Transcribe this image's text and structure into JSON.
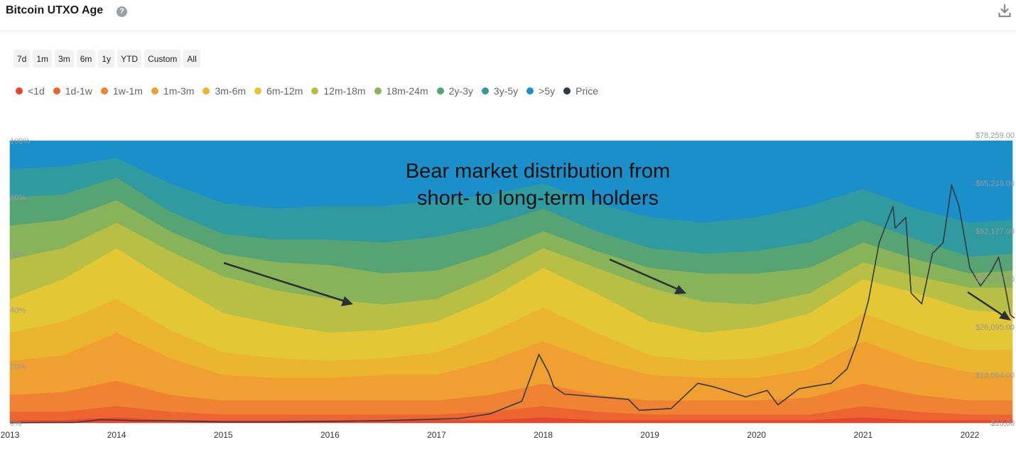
{
  "header": {
    "title": "Bitcoin UTXO Age",
    "help_icon": "question-circle-icon",
    "help_glyph": "?",
    "download_icon": "download-icon"
  },
  "ranges": [
    "7d",
    "1m",
    "3m",
    "6m",
    "1y",
    "YTD",
    "Custom",
    "All"
  ],
  "chart_data": {
    "type": "area",
    "stacked": "percent",
    "title": "",
    "x_ticks": [
      "2013",
      "2014",
      "2015",
      "2016",
      "2017",
      "2018",
      "2019",
      "2020",
      "2021",
      "2022"
    ],
    "y_ticks": [
      "0%",
      "20%",
      "40%",
      "60%",
      "80%",
      "100%"
    ],
    "ylim": [
      0,
      100
    ],
    "price_axis_ticks": [
      "$13,00",
      "$13,054.00",
      "$26,095.00",
      "$39,136.00",
      "$52,177.00",
      "$65,218.00",
      "$78,259.00"
    ],
    "price_ylim": [
      13,
      78259
    ],
    "legend_position": "top-left",
    "grid": false,
    "x": [
      2013.0,
      2013.5,
      2014.0,
      2014.5,
      2015.0,
      2015.5,
      2016.0,
      2016.5,
      2017.0,
      2017.5,
      2018.0,
      2018.5,
      2019.0,
      2019.5,
      2020.0,
      2020.5,
      2021.0,
      2021.5,
      2022.0,
      2022.4
    ],
    "series": [
      {
        "name": "<1d",
        "color": "#e8452c",
        "values": [
          1,
          1,
          2,
          1,
          1,
          1,
          1,
          1,
          1,
          1,
          2,
          1,
          1,
          1,
          1,
          1,
          2,
          1,
          1,
          1
        ]
      },
      {
        "name": "1d-1w",
        "color": "#ec6530",
        "values": [
          3,
          3,
          4,
          3,
          2,
          2,
          2,
          2,
          2,
          3,
          4,
          3,
          2,
          2,
          2,
          2,
          4,
          3,
          2,
          2
        ]
      },
      {
        "name": "1w-1m",
        "color": "#ef8233",
        "values": [
          6,
          7,
          9,
          6,
          5,
          5,
          5,
          5,
          5,
          6,
          8,
          6,
          5,
          5,
          5,
          6,
          8,
          6,
          5,
          5
        ]
      },
      {
        "name": "1m-3m",
        "color": "#f0a030",
        "values": [
          12,
          13,
          17,
          13,
          9,
          8,
          8,
          9,
          9,
          12,
          15,
          12,
          9,
          8,
          8,
          10,
          15,
          12,
          10,
          9
        ]
      },
      {
        "name": "3m-6m",
        "color": "#ebb52f",
        "values": [
          10,
          12,
          12,
          10,
          8,
          7,
          6,
          6,
          8,
          10,
          12,
          10,
          7,
          6,
          7,
          8,
          10,
          10,
          8,
          9
        ]
      },
      {
        "name": "6m-12m",
        "color": "#e3c734",
        "values": [
          12,
          15,
          18,
          17,
          14,
          12,
          10,
          10,
          11,
          12,
          14,
          14,
          12,
          10,
          11,
          12,
          12,
          14,
          14,
          13
        ]
      },
      {
        "name": "12m-18m",
        "color": "#b7bf45",
        "values": [
          14,
          11,
          9,
          11,
          13,
          12,
          12,
          9,
          8,
          8,
          7,
          9,
          12,
          11,
          8,
          7,
          6,
          6,
          8,
          9
        ]
      },
      {
        "name": "18m-24m",
        "color": "#88b358",
        "values": [
          12,
          10,
          8,
          7,
          8,
          10,
          12,
          11,
          10,
          8,
          6,
          6,
          7,
          10,
          11,
          9,
          7,
          6,
          5,
          6
        ]
      },
      {
        "name": "2y-3y",
        "color": "#56a474",
        "values": [
          10,
          9,
          8,
          7,
          7,
          8,
          9,
          11,
          12,
          10,
          8,
          7,
          7,
          7,
          8,
          9,
          8,
          7,
          6,
          6
        ]
      },
      {
        "name": "3y-5y",
        "color": "#2f9aa0",
        "values": [
          10,
          10,
          7,
          10,
          11,
          11,
          12,
          13,
          13,
          11,
          9,
          10,
          11,
          11,
          12,
          13,
          11,
          11,
          12,
          12
        ]
      },
      {
        "name": ">5y",
        "color": "#1a8fc9",
        "values": [
          10,
          9,
          6,
          15,
          22,
          24,
          23,
          23,
          21,
          19,
          15,
          22,
          27,
          29,
          27,
          23,
          17,
          24,
          29,
          28
        ]
      }
    ],
    "price": {
      "name": "Price",
      "color": "#333a40",
      "points": [
        [
          2013.0,
          13
        ],
        [
          2013.3,
          100
        ],
        [
          2013.6,
          120
        ],
        [
          2013.85,
          900
        ],
        [
          2014.0,
          800
        ],
        [
          2014.2,
          600
        ],
        [
          2014.5,
          600
        ],
        [
          2015.0,
          250
        ],
        [
          2015.5,
          250
        ],
        [
          2016.0,
          430
        ],
        [
          2016.5,
          650
        ],
        [
          2016.9,
          960
        ],
        [
          2017.2,
          1200
        ],
        [
          2017.5,
          2500
        ],
        [
          2017.8,
          6000
        ],
        [
          2017.96,
          19000
        ],
        [
          2018.05,
          14000
        ],
        [
          2018.1,
          10000
        ],
        [
          2018.2,
          8000
        ],
        [
          2018.4,
          7500
        ],
        [
          2018.6,
          7000
        ],
        [
          2018.8,
          6500
        ],
        [
          2018.9,
          3500
        ],
        [
          2019.2,
          4000
        ],
        [
          2019.45,
          11000
        ],
        [
          2019.6,
          10000
        ],
        [
          2019.9,
          7200
        ],
        [
          2020.1,
          9000
        ],
        [
          2020.2,
          5000
        ],
        [
          2020.4,
          9500
        ],
        [
          2020.7,
          11000
        ],
        [
          2020.85,
          15000
        ],
        [
          2020.95,
          23000
        ],
        [
          2021.05,
          34000
        ],
        [
          2021.15,
          50000
        ],
        [
          2021.28,
          60000
        ],
        [
          2021.3,
          54000
        ],
        [
          2021.4,
          57000
        ],
        [
          2021.45,
          36000
        ],
        [
          2021.55,
          33000
        ],
        [
          2021.6,
          40000
        ],
        [
          2021.65,
          47000
        ],
        [
          2021.75,
          50000
        ],
        [
          2021.83,
          66000
        ],
        [
          2021.9,
          60000
        ],
        [
          2022.0,
          43000
        ],
        [
          2022.1,
          38000
        ],
        [
          2022.2,
          42000
        ],
        [
          2022.27,
          46000
        ],
        [
          2022.33,
          38000
        ],
        [
          2022.38,
          30000
        ],
        [
          2022.42,
          29000
        ]
      ]
    },
    "annotations": [
      {
        "text": [
          "Bear market distribution from",
          "short- to long-term holders"
        ]
      }
    ]
  }
}
